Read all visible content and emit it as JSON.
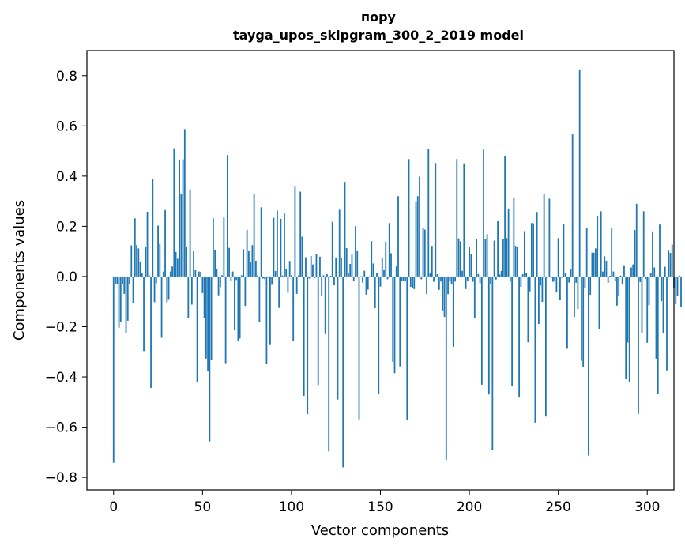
{
  "chart_data": {
    "type": "bar",
    "title": "пору",
    "subtitle": "tayga_upos_skipgram_300_2_2019 model",
    "xlabel": "Vector components",
    "ylabel": "Components values",
    "xlim": [
      -15,
      315
    ],
    "ylim": [
      -0.85,
      0.9
    ],
    "xticks": [
      0,
      50,
      100,
      150,
      200,
      250,
      300
    ],
    "yticks": [
      -0.8,
      -0.6,
      -0.4,
      -0.2,
      0.0,
      0.2,
      0.4,
      0.6,
      0.8
    ],
    "ytick_labels": [
      "−0.8",
      "−0.6",
      "−0.4",
      "−0.2",
      "0.0",
      "0.2",
      "0.4",
      "0.6",
      "0.8"
    ],
    "bar_color": "#1f77b4",
    "values": [
      -0.742,
      -0.028,
      -0.032,
      -0.204,
      -0.18,
      -0.029,
      -0.069,
      -0.227,
      -0.176,
      -0.032,
      0.124,
      -0.105,
      0.232,
      0.125,
      0.112,
      0.06,
      0.012,
      -0.297,
      0.118,
      0.258,
      0.005,
      -0.444,
      0.39,
      -0.102,
      -0.027,
      0.203,
      0.13,
      -0.244,
      0.02,
      0.265,
      -0.103,
      -0.093,
      0.02,
      0.04,
      0.511,
      0.098,
      0.071,
      0.466,
      0.33,
      0.467,
      0.587,
      0.12,
      -0.165,
      0.347,
      -0.112,
      0.101,
      0.025,
      -0.42,
      0.02,
      0.019,
      -0.066,
      -0.164,
      -0.327,
      -0.378,
      -0.657,
      -0.334,
      0.232,
      0.107,
      0.029,
      -0.075,
      -0.042,
      0.005,
      0.235,
      -0.345,
      0.484,
      0.114,
      -0.018,
      0.02,
      -0.213,
      -0.014,
      -0.258,
      -0.247,
      0.005,
      0.109,
      -0.117,
      0.186,
      0.102,
      0.057,
      0.125,
      0.329,
      0.063,
      0.005,
      -0.18,
      0.276,
      -0.008,
      -0.01,
      -0.347,
      -0.005,
      -0.27,
      -0.033,
      0.234,
      0.022,
      0.263,
      -0.125,
      0.23,
      0.004,
      0.251,
      0.029,
      -0.065,
      0.062,
      0.005,
      -0.258,
      0.358,
      -0.069,
      0.005,
      0.338,
      0.159,
      -0.476,
      0.077,
      -0.548,
      -0.008,
      0.082,
      0.048,
      -0.006,
      0.09,
      -0.432,
      0.079,
      -0.077,
      0.005,
      -0.229,
      0.009,
      -0.697,
      0.003,
      0.218,
      -0.035,
      0.076,
      -0.49,
      0.266,
      0.075,
      -0.76,
      0.377,
      0.113,
      0.013,
      0.05,
      0.087,
      -0.016,
      0.201,
      0.104,
      -0.569,
      0.001,
      -0.024,
      0.023,
      -0.072,
      -0.052,
      0.001,
      0.141,
      0.052,
      -0.126,
      0.014,
      -0.468,
      -0.04,
      0.076,
      0.025,
      0.139,
      -0.011,
      0.213,
      0.093,
      -0.34,
      -0.385,
      0.04,
      0.32,
      -0.358,
      -0.019,
      -0.017,
      -0.016,
      -0.57,
      0.468,
      -0.041,
      -0.046,
      -0.05,
      0.3,
      0.32,
      0.398,
      -0.011,
      0.195,
      0.187,
      -0.07,
      0.509,
      0.012,
      0.122,
      -0.021,
      0.452,
      0.009,
      -0.053,
      -0.02,
      -0.135,
      -0.161,
      -0.731,
      -0.07,
      -0.02,
      -0.031,
      -0.28,
      -0.02,
      0.468,
      0.152,
      0.14,
      0.023,
      0.451,
      -0.05,
      -0.018,
      0.116,
      0.088,
      -0.021,
      -0.164,
      0.148,
      0.01,
      -0.027,
      -0.431,
      0.506,
      0.15,
      0.169,
      -0.47,
      -0.031,
      -0.692,
      0.143,
      -0.012,
      0.22,
      0.008,
      0.022,
      0.149,
      0.481,
      0.153,
      0.271,
      -0.02,
      -0.436,
      0.315,
      0.122,
      0.118,
      -0.482,
      -0.041,
      0.009,
      0.181,
      0.015,
      -0.262,
      -0.059,
      0.213,
      0.212,
      -0.582,
      0.257,
      -0.189,
      -0.036,
      -0.101,
      0.33,
      -0.558,
      -0.004,
      0.31,
      -0.006,
      -0.021,
      -0.018,
      -0.064,
      0.153,
      -0.095,
      -0.005,
      0.21,
      0.012,
      -0.288,
      -0.024,
      0.029,
      0.566,
      -0.161,
      -0.025,
      -0.129,
      0.825,
      -0.336,
      -0.36,
      -0.044,
      0.193,
      -0.713,
      -0.073,
      0.095,
      0.095,
      0.112,
      0.242,
      -0.208,
      0.26,
      0.02,
      0.081,
      0.063,
      -0.025,
      0.003,
      0.195,
      0.02,
      -0.018,
      -0.116,
      -0.079,
      0.004,
      -0.032,
      0.045,
      -0.407,
      -0.263,
      -0.422,
      0.036,
      0.048,
      0.185,
      0.29,
      -0.547,
      -0.022,
      -0.226,
      0.26,
      -0.01,
      -0.264,
      -0.114,
      0.015,
      0.18,
      0.036,
      -0.327,
      -0.468,
      0.207,
      -0.098,
      -0.227,
      0.039,
      -0.374,
      0.106,
      0.094,
      0.127,
      -0.048,
      -0.111,
      -0.078,
      0.005,
      -0.121
    ]
  }
}
